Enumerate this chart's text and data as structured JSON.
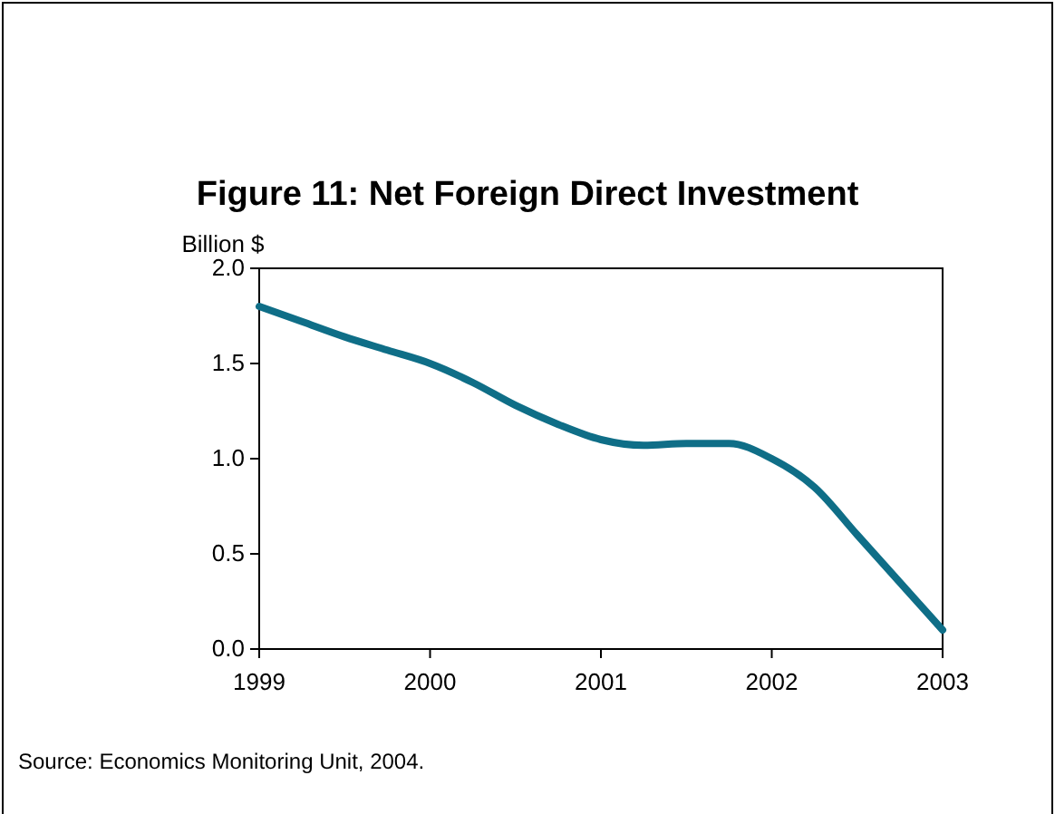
{
  "chart_data": {
    "type": "line",
    "title": "Figure 11: Net Foreign Direct Investment",
    "ylabel": "Billion $",
    "x": [
      1999,
      1999.25,
      1999.5,
      1999.75,
      2000,
      2000.25,
      2000.5,
      2000.75,
      2001,
      2001.25,
      2001.5,
      2001.75,
      2002,
      2002.25,
      2002.5,
      2002.75,
      2003
    ],
    "series": [
      {
        "color": "#0f6e87",
        "values": [
          1.8,
          1.72,
          1.64,
          1.57,
          1.5,
          1.4,
          1.28,
          1.18,
          1.1,
          1.07,
          1.08,
          1.08,
          1.0,
          0.85,
          0.6,
          0.35,
          0.1
        ]
      }
    ],
    "xlim": [
      1999,
      2003
    ],
    "xticks": [
      1999,
      2000,
      2001,
      2002,
      2003
    ],
    "ylim": [
      0,
      2
    ],
    "yticks": [
      {
        "value": 0,
        "label": "0.0"
      },
      {
        "value": 0.5,
        "label": "0.5"
      },
      {
        "value": 1,
        "label": "1.0"
      },
      {
        "value": 1.5,
        "label": "1.5"
      },
      {
        "value": 2,
        "label": "2.0"
      }
    ],
    "grid": false,
    "marker": "none",
    "line_style": "solid",
    "annotations": [
      "Source: Economics Monitoring Unit, 2004."
    ]
  }
}
